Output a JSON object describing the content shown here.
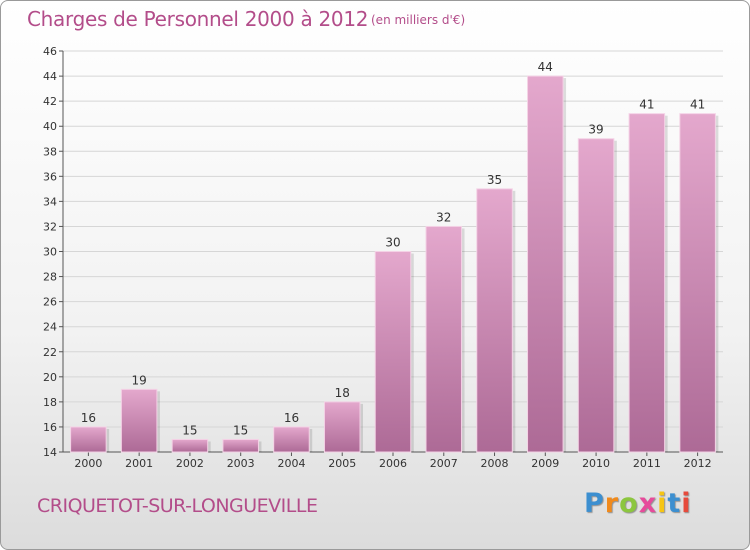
{
  "header": {
    "title": "Charges de Personnel 2000 à 2012",
    "subtitle": "(en milliers d'€)"
  },
  "footer": {
    "commune": "CRIQUETOT-SUR-LONGUEVILLE",
    "logo": {
      "letters": [
        "P",
        "r",
        "o",
        "x",
        "i",
        "t",
        "i"
      ],
      "colors": [
        "#3c8fd0",
        "#f08a1c",
        "#8cc63f",
        "#e64b9b",
        "#f6c514",
        "#3c8fd0",
        "#e64b3c"
      ]
    }
  },
  "chart_data": {
    "type": "bar",
    "categories": [
      "2000",
      "2001",
      "2002",
      "2003",
      "2004",
      "2005",
      "2006",
      "2007",
      "2008",
      "2009",
      "2010",
      "2011",
      "2012"
    ],
    "values": [
      16,
      19,
      15,
      15,
      16,
      18,
      30,
      32,
      35,
      44,
      39,
      41,
      41
    ],
    "data_labels": [
      "16",
      "19",
      "15",
      "15",
      "16",
      "18",
      "30",
      "32",
      "35",
      "44",
      "39",
      "41",
      "41"
    ],
    "title": "Charges de Personnel 2000 à 2012",
    "ylim": [
      14,
      46
    ],
    "yticks": [
      14,
      16,
      18,
      20,
      22,
      24,
      26,
      28,
      30,
      32,
      34,
      36,
      38,
      40,
      42,
      44,
      46
    ],
    "grid": true,
    "bar_color": "#c878a8"
  }
}
